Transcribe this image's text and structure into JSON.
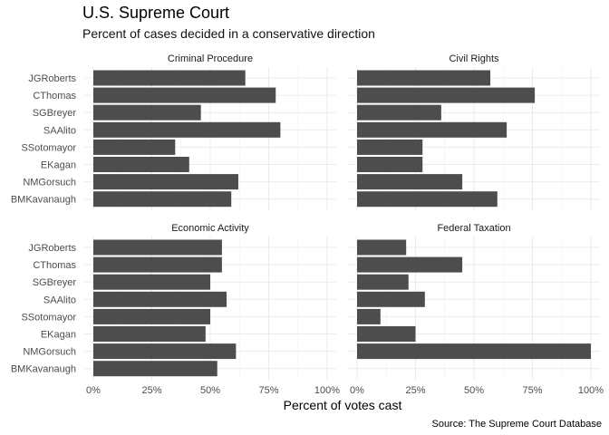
{
  "title": "U.S. Supreme Court",
  "subtitle": "Percent of cases decided in a conservative direction",
  "caption": "Source: The Supreme Court Database",
  "chart_data": {
    "type": "bar",
    "orientation": "horizontal",
    "facets": [
      {
        "name": "Criminal Procedure",
        "values": [
          0.65,
          0.78,
          0.46,
          0.8,
          0.35,
          0.41,
          0.62,
          0.59
        ]
      },
      {
        "name": "Civil Rights",
        "values": [
          0.57,
          0.76,
          0.36,
          0.64,
          0.28,
          0.28,
          0.45,
          0.6
        ]
      },
      {
        "name": "Economic Activity",
        "values": [
          0.55,
          0.55,
          0.5,
          0.57,
          0.5,
          0.48,
          0.61,
          0.53
        ]
      },
      {
        "name": "Federal Taxation",
        "values": [
          0.21,
          0.45,
          0.22,
          0.29,
          0.1,
          0.25,
          1.0,
          null
        ]
      }
    ],
    "categories": [
      "JGRoberts",
      "CThomas",
      "SGBreyer",
      "SAAlito",
      "SSotomayor",
      "EKagan",
      "NMGorsuch",
      "BMKavanaugh"
    ],
    "x_ticks": [
      "0%",
      "25%",
      "50%",
      "75%",
      "100%"
    ],
    "xlim": [
      0,
      1
    ],
    "xlabel": "Percent of votes cast",
    "ylabel": "",
    "bar_color": "#4d4d4d",
    "grid": true,
    "legend": "none"
  }
}
